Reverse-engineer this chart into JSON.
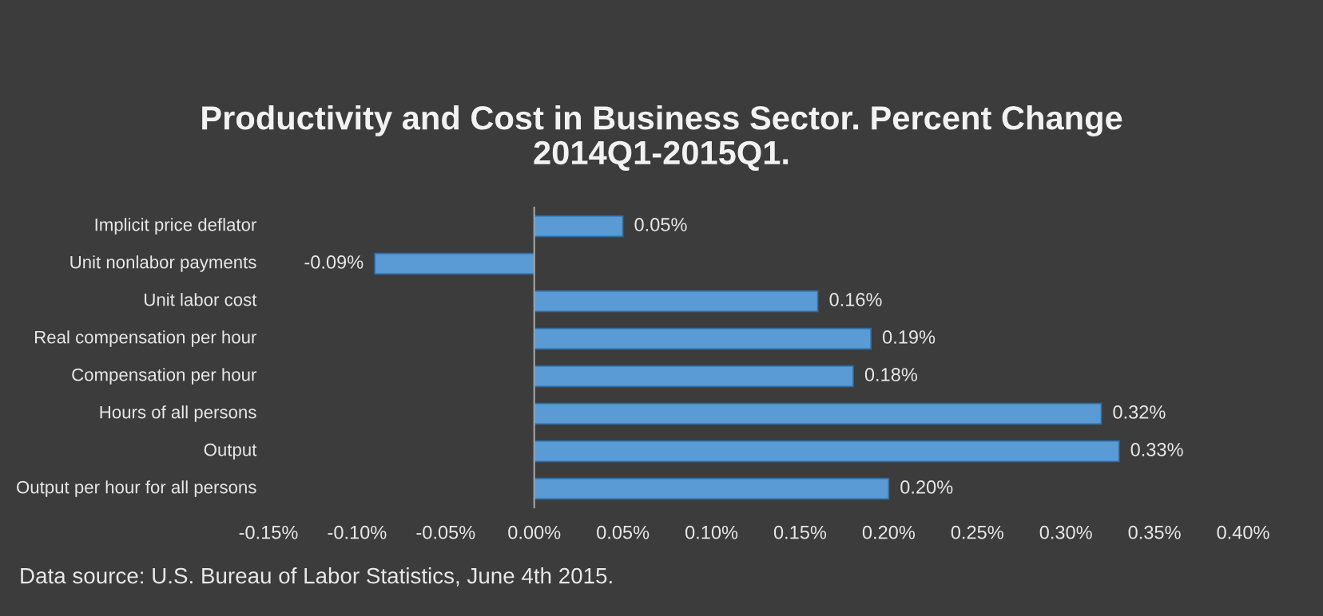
{
  "chart_data": {
    "type": "bar",
    "orientation": "horizontal",
    "title": "Productivity and Cost in Business Sector. Percent Change\n2014Q1-2015Q1.",
    "categories": [
      "Implicit price deflator",
      "Unit nonlabor payments",
      "Unit labor cost",
      "Real compensation per hour",
      "Compensation per hour",
      "Hours of all persons",
      "Output",
      "Output per hour for all persons"
    ],
    "values": [
      0.05,
      -0.09,
      0.16,
      0.19,
      0.18,
      0.32,
      0.33,
      0.2
    ],
    "value_labels": [
      "0.05%",
      "-0.09%",
      "0.16%",
      "0.19%",
      "0.18%",
      "0.32%",
      "0.33%",
      "0.20%"
    ],
    "color": "#5b9bd5",
    "xlim": [
      -0.15,
      0.4
    ],
    "xticks": [
      {
        "value": -0.15,
        "label": "-0.15%"
      },
      {
        "value": -0.1,
        "label": "-0.10%"
      },
      {
        "value": -0.05,
        "label": "-0.05%"
      },
      {
        "value": 0,
        "label": "0.00%"
      },
      {
        "value": 0.05,
        "label": "0.05%"
      },
      {
        "value": 0.1,
        "label": "0.10%"
      },
      {
        "value": 0.15,
        "label": "0.15%"
      },
      {
        "value": 0.2,
        "label": "0.20%"
      },
      {
        "value": 0.25,
        "label": "0.25%"
      },
      {
        "value": 0.3,
        "label": "0.30%"
      },
      {
        "value": 0.35,
        "label": "0.35%"
      },
      {
        "value": 0.4,
        "label": "0.40%"
      }
    ],
    "annotations": [
      "Data source: U.S. Bureau of Labor Statistics, June 4th 2015."
    ]
  }
}
